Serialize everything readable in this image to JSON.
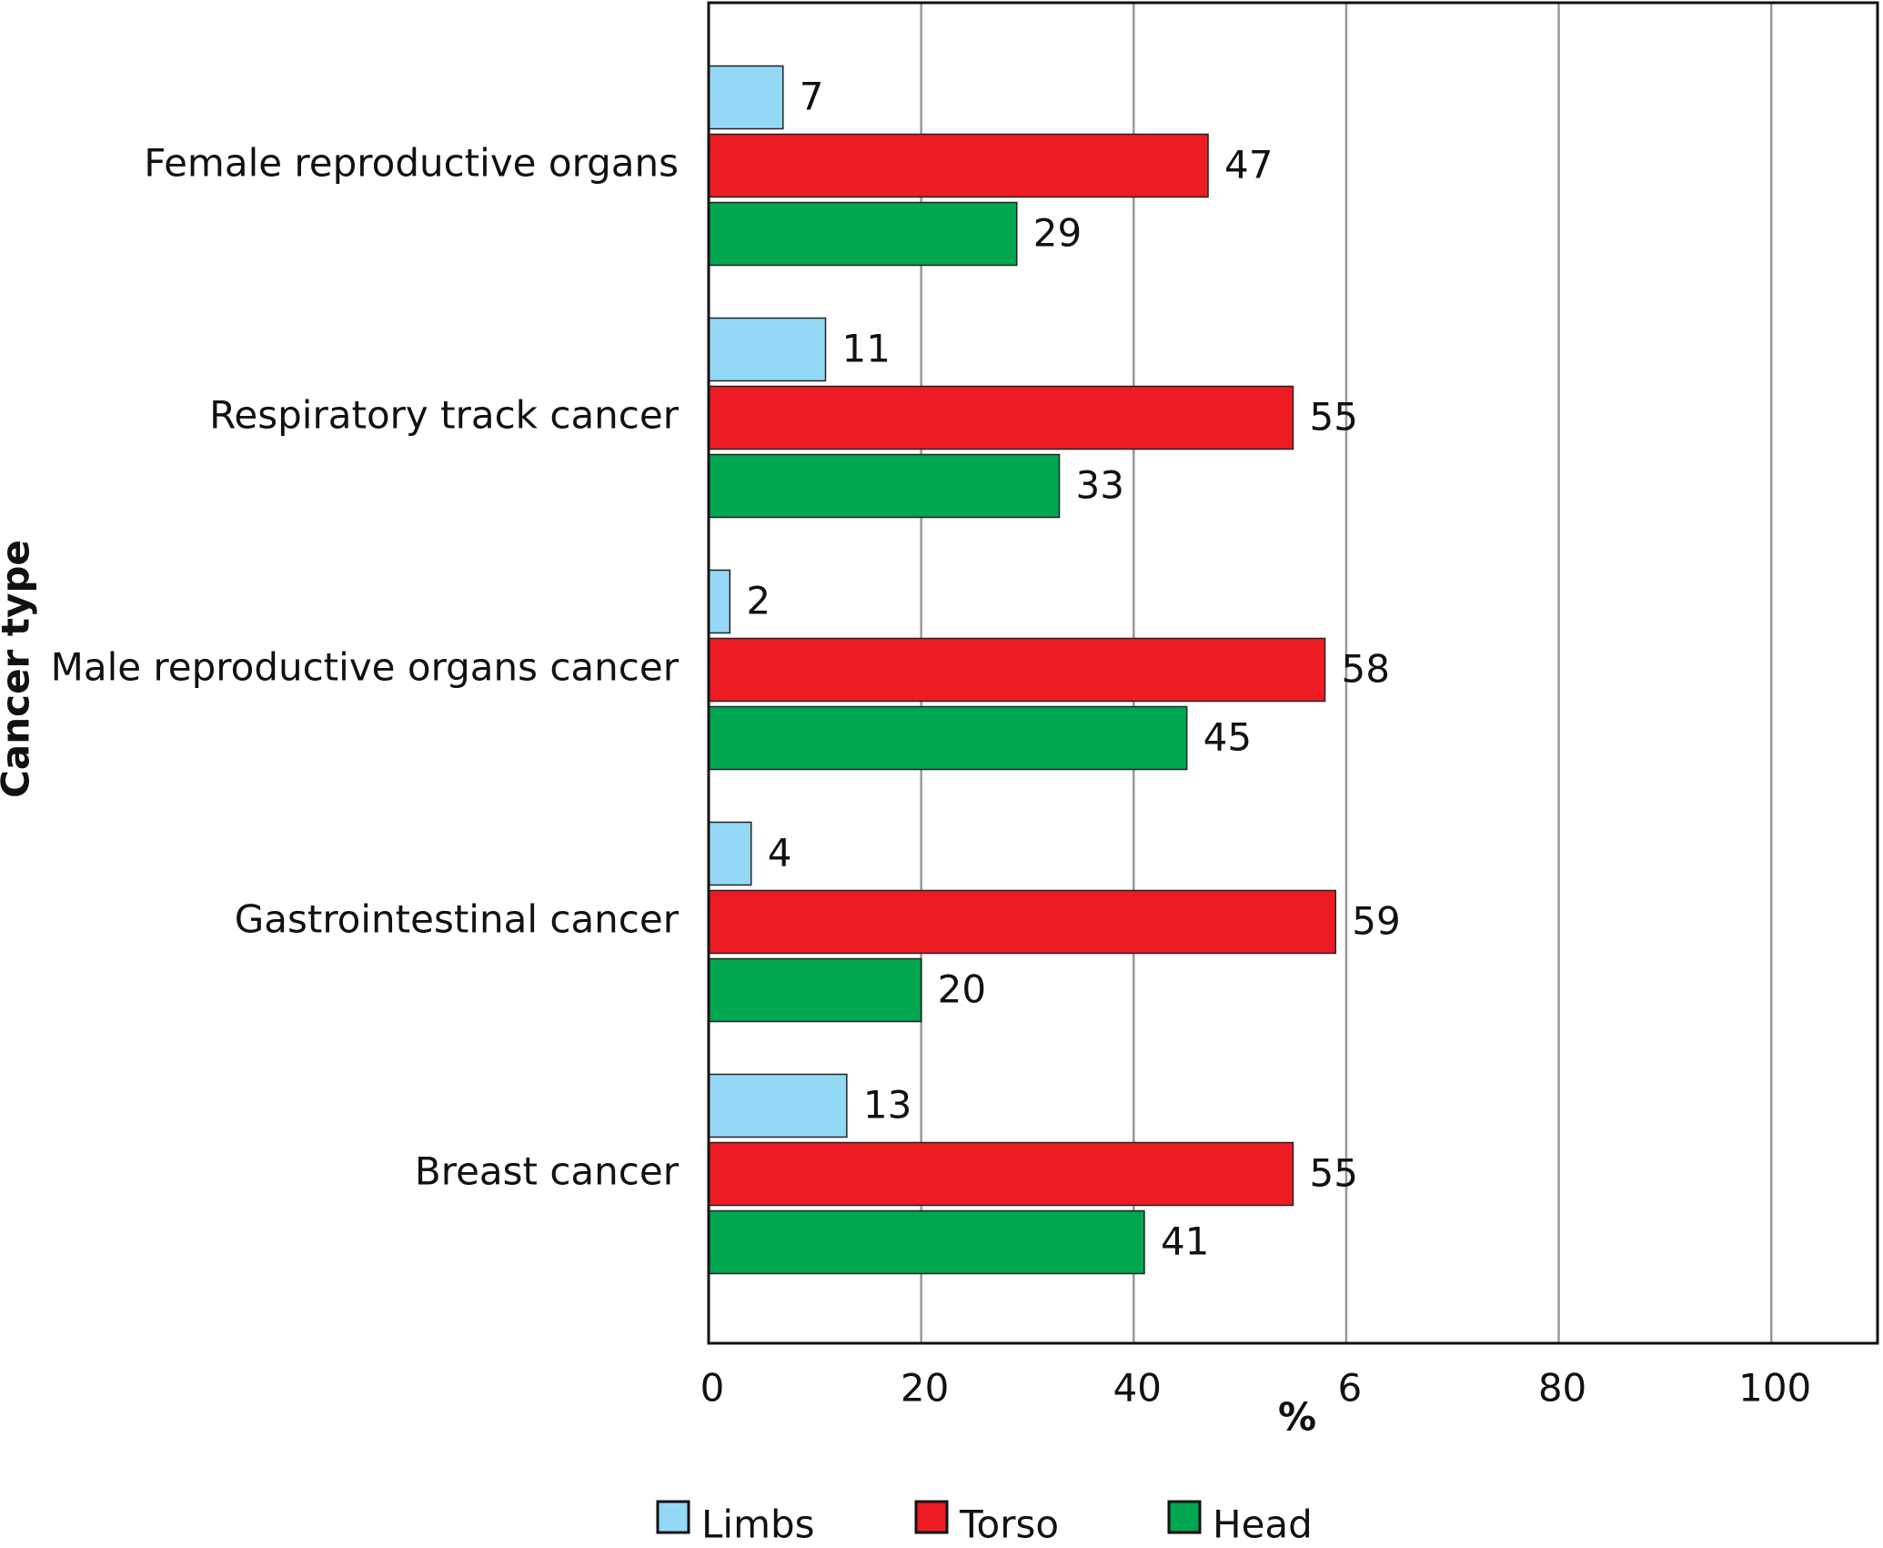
{
  "chart_data": {
    "type": "bar",
    "orientation": "horizontal",
    "xlabel": "%",
    "ylabel": "Cancer type",
    "categories": [
      "Female reproductive organs",
      "Respiratory track cancer",
      "Male reproductive organs cancer",
      "Gastrointestinal cancer",
      "Breast cancer"
    ],
    "series": [
      {
        "name": "Limbs",
        "color": "#93d9f6",
        "values": [
          7,
          11,
          2,
          4,
          13
        ]
      },
      {
        "name": "Torso",
        "color": "#ed1c24",
        "values": [
          47,
          55,
          58,
          59,
          55
        ]
      },
      {
        "name": "Head",
        "color": "#00a650",
        "values": [
          29,
          33,
          45,
          20,
          41
        ]
      }
    ],
    "xlim": [
      0,
      110
    ],
    "xticks": [
      0,
      20,
      40,
      {
        "value": 60,
        "label": "6"
      },
      80,
      100
    ],
    "grid": true,
    "legend": "bottom"
  }
}
